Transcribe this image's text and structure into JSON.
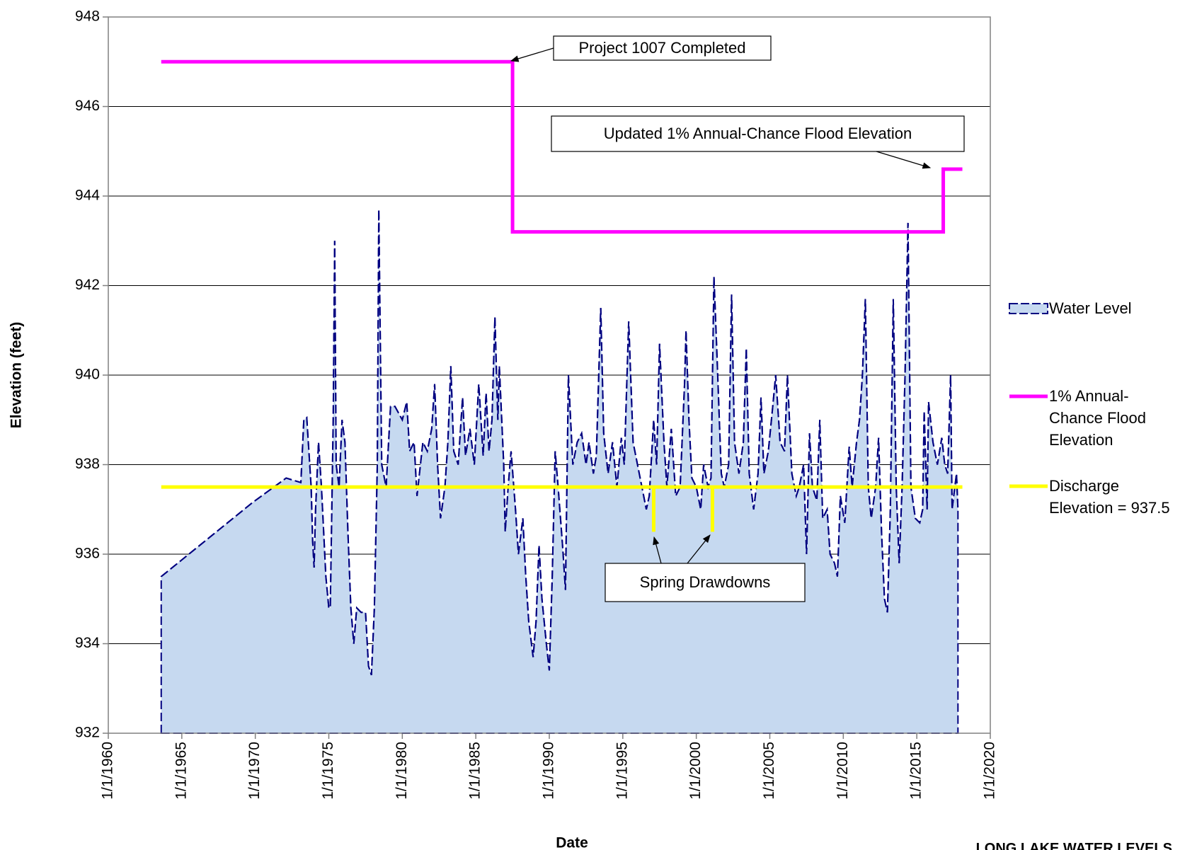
{
  "chart_data": {
    "type": "line",
    "title": "LONG LAKE WATER LEVELS",
    "x_label": "Date",
    "y_label": "Elevation (feet)",
    "xlim": [
      1960,
      2020
    ],
    "xticks": [
      {
        "value": 1960,
        "label": "1/1/1960"
      },
      {
        "value": 1965,
        "label": "1/1/1965"
      },
      {
        "value": 1970,
        "label": "1/1/1970"
      },
      {
        "value": 1975,
        "label": "1/1/1975"
      },
      {
        "value": 1980,
        "label": "1/1/1980"
      },
      {
        "value": 1985,
        "label": "1/1/1985"
      },
      {
        "value": 1990,
        "label": "1/1/1990"
      },
      {
        "value": 1995,
        "label": "1/1/1995"
      },
      {
        "value": 2000,
        "label": "1/1/2000"
      },
      {
        "value": 2005,
        "label": "1/1/2005"
      },
      {
        "value": 2010,
        "label": "1/1/2010"
      },
      {
        "value": 2015,
        "label": "1/1/2015"
      },
      {
        "value": 2020,
        "label": "1/1/2020"
      }
    ],
    "ylim": [
      932,
      948
    ],
    "yticks": [
      932,
      934,
      936,
      938,
      940,
      942,
      944,
      946,
      948
    ],
    "grid": true,
    "legend": "right",
    "series": [
      {
        "name": "Water Level",
        "color": "#000080",
        "fill": "#c6d9f0",
        "style": "area",
        "x": [
          1963.6,
          1969.8,
          1972.1,
          1973.1,
          1973.3,
          1973.5,
          1973.8,
          1973.9,
          1974.0,
          1974.1,
          1974.3,
          1974.5,
          1974.8,
          1975.0,
          1975.1,
          1975.3,
          1975.4,
          1975.5,
          1975.7,
          1975.9,
          1976.1,
          1976.3,
          1976.5,
          1976.7,
          1976.9,
          1977.2,
          1977.5,
          1977.7,
          1977.9,
          1978.1,
          1978.3,
          1978.4,
          1978.6,
          1978.9,
          1979.2,
          1979.5,
          1980.0,
          1980.3,
          1980.5,
          1980.8,
          1981.0,
          1981.4,
          1981.7,
          1982.0,
          1982.2,
          1982.4,
          1982.6,
          1982.9,
          1983.1,
          1983.3,
          1983.5,
          1983.8,
          1984.1,
          1984.3,
          1984.6,
          1984.9,
          1985.2,
          1985.5,
          1985.7,
          1985.9,
          1986.1,
          1986.3,
          1986.5,
          1986.6,
          1986.9,
          1987.0,
          1987.2,
          1987.4,
          1987.7,
          1987.9,
          1988.2,
          1988.4,
          1988.6,
          1988.9,
          1989.1,
          1989.3,
          1989.5,
          1989.8,
          1990.0,
          1990.2,
          1990.4,
          1990.6,
          1990.9,
          1991.1,
          1991.3,
          1991.6,
          1991.9,
          1992.2,
          1992.5,
          1992.7,
          1993.0,
          1993.2,
          1993.5,
          1993.7,
          1994.0,
          1994.3,
          1994.6,
          1994.9,
          1995.1,
          1995.4,
          1995.7,
          1996.0,
          1996.3,
          1996.6,
          1996.8,
          1997.1,
          1997.3,
          1997.5,
          1997.8,
          1998.0,
          1998.3,
          1998.6,
          1998.9,
          1999.2,
          1999.3,
          1999.5,
          1999.7,
          2000.0,
          2000.3,
          2000.5,
          2000.8,
          2001.0,
          2001.2,
          2001.4,
          2001.7,
          2001.9,
          2002.2,
          2002.4,
          2002.6,
          2002.9,
          2003.2,
          2003.4,
          2003.6,
          2003.9,
          2004.2,
          2004.4,
          2004.6,
          2004.9,
          2005.2,
          2005.4,
          2005.7,
          2006.0,
          2006.2,
          2006.5,
          2006.8,
          2007.0,
          2007.3,
          2007.5,
          2007.7,
          2007.9,
          2008.2,
          2008.4,
          2008.6,
          2008.9,
          2009.1,
          2009.4,
          2009.6,
          2009.8,
          2010.1,
          2010.4,
          2010.6,
          2010.9,
          2011.1,
          2011.3,
          2011.5,
          2011.7,
          2011.9,
          2012.2,
          2012.4,
          2012.6,
          2012.8,
          2013.0,
          2013.2,
          2013.4,
          2013.6,
          2013.8,
          2014.0,
          2014.2,
          2014.4,
          2014.6,
          2014.9,
          2015.2,
          2015.4,
          2015.5,
          2015.7,
          2015.8,
          2016.1,
          2016.4,
          2016.7,
          2016.9,
          2017.1,
          2017.3,
          2017.4,
          2017.7,
          2017.8
        ],
        "values": [
          935.5,
          937.15,
          937.7,
          937.6,
          939.0,
          939.05,
          937.5,
          936.3,
          935.7,
          937.0,
          938.5,
          937.5,
          935.5,
          934.8,
          934.8,
          939.0,
          943.0,
          938.0,
          937.5,
          939.0,
          938.5,
          936.5,
          934.8,
          934.0,
          934.8,
          934.7,
          934.7,
          933.5,
          933.3,
          934.8,
          938.0,
          943.7,
          938.0,
          937.5,
          939.3,
          939.3,
          939.0,
          939.4,
          938.3,
          938.5,
          937.3,
          938.5,
          938.3,
          938.8,
          939.8,
          938.0,
          936.8,
          937.5,
          938.5,
          940.2,
          938.3,
          938.0,
          939.5,
          938.2,
          938.8,
          938.0,
          939.8,
          938.2,
          939.6,
          938.3,
          939.0,
          941.3,
          939.0,
          940.2,
          938.0,
          936.5,
          937.5,
          938.3,
          937.0,
          936.0,
          936.8,
          935.5,
          934.5,
          933.7,
          934.5,
          936.2,
          935.0,
          934.0,
          933.4,
          935.5,
          938.3,
          937.5,
          936.2,
          935.2,
          940.0,
          938.0,
          938.5,
          938.7,
          938.0,
          938.5,
          937.8,
          938.2,
          941.5,
          938.7,
          937.8,
          938.5,
          937.5,
          938.6,
          938.0,
          941.2,
          938.5,
          938.0,
          937.5,
          937.0,
          937.3,
          939.0,
          938.0,
          940.7,
          938.5,
          937.5,
          938.8,
          937.3,
          937.5,
          939.8,
          941.0,
          939.0,
          937.7,
          937.5,
          937.0,
          938.0,
          937.5,
          937.7,
          942.2,
          940.5,
          937.8,
          937.5,
          938.0,
          941.8,
          938.5,
          937.8,
          938.5,
          940.6,
          937.8,
          937.0,
          937.8,
          939.5,
          937.8,
          938.3,
          939.3,
          940.0,
          938.5,
          938.3,
          940.0,
          937.8,
          937.3,
          937.5,
          938.0,
          936.0,
          938.7,
          937.5,
          937.2,
          939.0,
          936.8,
          937.0,
          936.0,
          935.8,
          935.5,
          937.3,
          936.7,
          938.4,
          937.5,
          938.5,
          939.0,
          940.0,
          941.7,
          937.5,
          936.8,
          937.5,
          938.6,
          936.5,
          935.0,
          934.7,
          937.0,
          941.7,
          937.5,
          935.8,
          937.5,
          940.0,
          943.4,
          937.5,
          936.8,
          936.7,
          937.0,
          939.2,
          937.0,
          939.4,
          938.5,
          938.0,
          938.6,
          938.0,
          937.8,
          940.0,
          937.0,
          937.8,
          937.0
        ]
      },
      {
        "name": "1% Annual-Chance Flood Elevation",
        "color": "#ff00ff",
        "style": "line",
        "x": [
          1963.6,
          1987.5,
          1987.5,
          2016.8,
          2016.8,
          2018.1
        ],
        "values": [
          947,
          947,
          943.2,
          943.2,
          944.6,
          944.6
        ]
      },
      {
        "name": "Discharge Elevation = 937.5",
        "color": "#ffff00",
        "style": "line",
        "x": [
          1963.6,
          1997.1,
          1997.1,
          1997.1,
          2001.1,
          2001.1,
          2001.1,
          2018.1
        ],
        "values": [
          937.5,
          937.5,
          936.5,
          937.5,
          937.5,
          936.5,
          937.5,
          937.5
        ]
      }
    ],
    "annotations": [
      {
        "text": "Project 1007 Completed"
      },
      {
        "text": "Updated 1% Annual-Chance Flood Elevation"
      },
      {
        "text": "Spring Drawdowns"
      }
    ]
  }
}
